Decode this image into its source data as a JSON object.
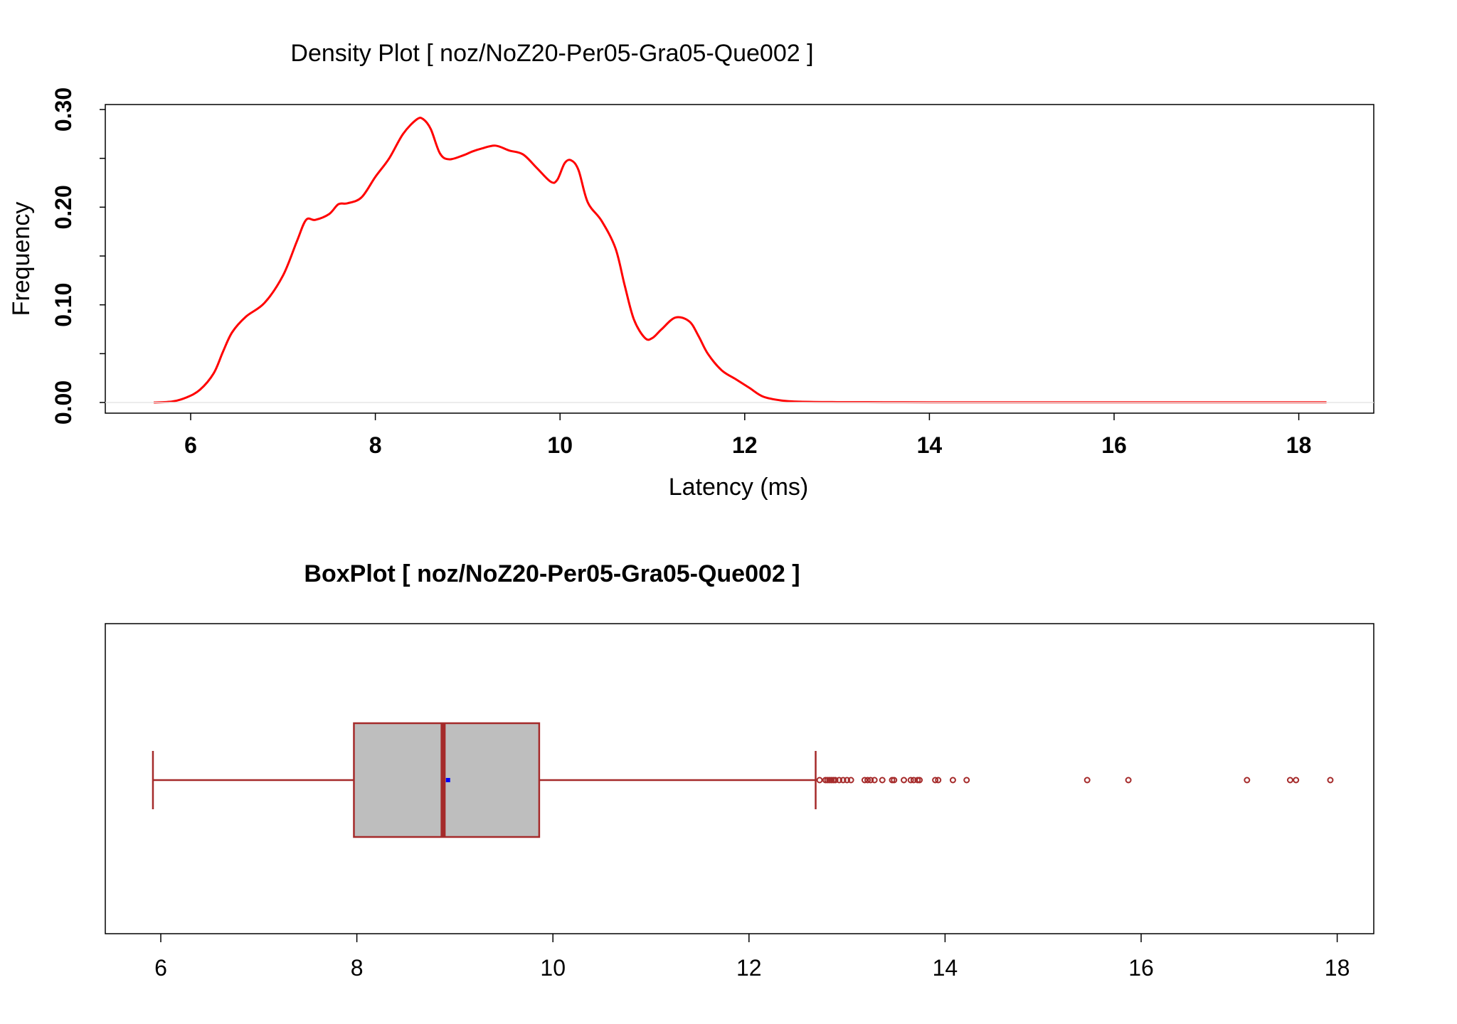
{
  "chart_data": [
    {
      "type": "line",
      "title": "Density Plot [ noz/NoZ20-Per05-Gra05-Que002 ]",
      "xlabel": "Latency (ms)",
      "ylabel": "Frequency",
      "xlim": [
        5.6,
        18.3
      ],
      "ylim": [
        0.0,
        0.3
      ],
      "x_ticks": [
        "6",
        "8",
        "10",
        "12",
        "14",
        "16",
        "18"
      ],
      "y_ticks": [
        "0.00",
        "0.10",
        "0.20",
        "0.30"
      ],
      "line_color": "#ff0000",
      "series": [
        {
          "x": [
            5.6,
            5.8,
            5.95,
            6.1,
            6.25,
            6.35,
            6.45,
            6.6,
            6.8,
            7.0,
            7.15,
            7.25,
            7.35,
            7.5,
            7.6,
            7.7,
            7.85,
            8.0,
            8.15,
            8.3,
            8.45,
            8.52,
            8.6,
            8.7,
            8.8,
            8.95,
            9.05,
            9.15,
            9.3,
            9.45,
            9.6,
            9.75,
            9.9,
            9.97,
            10.05,
            10.12,
            10.2,
            10.3,
            10.45,
            10.6,
            10.7,
            10.8,
            10.92,
            11.0,
            11.1,
            11.25,
            11.4,
            11.5,
            11.6,
            11.75,
            11.9,
            12.05,
            12.2,
            12.4,
            12.6,
            13.0,
            13.5,
            14.0,
            15.0,
            16.0,
            17.0,
            18.3
          ],
          "y": [
            0.0,
            0.001,
            0.005,
            0.013,
            0.03,
            0.052,
            0.072,
            0.088,
            0.102,
            0.13,
            0.165,
            0.187,
            0.187,
            0.193,
            0.203,
            0.204,
            0.21,
            0.231,
            0.25,
            0.275,
            0.29,
            0.29,
            0.28,
            0.255,
            0.249,
            0.253,
            0.257,
            0.26,
            0.263,
            0.258,
            0.254,
            0.24,
            0.226,
            0.228,
            0.245,
            0.248,
            0.238,
            0.205,
            0.186,
            0.158,
            0.12,
            0.085,
            0.066,
            0.066,
            0.075,
            0.087,
            0.083,
            0.068,
            0.05,
            0.033,
            0.024,
            0.015,
            0.006,
            0.002,
            0.0008,
            0.0004,
            0.0003,
            0.0002,
            0.0002,
            0.0002,
            0.0002,
            0.0002
          ]
        }
      ]
    },
    {
      "type": "boxplot",
      "title": "BoxPlot [ noz/NoZ20-Per05-Gra05-Que002 ]",
      "xlim": [
        5.6,
        18.1
      ],
      "x_ticks": [
        "6",
        "8",
        "10",
        "12",
        "14",
        "16",
        "18"
      ],
      "stats": {
        "whisker_low": 5.92,
        "q1": 7.97,
        "median": 8.88,
        "mean": 8.93,
        "q3": 9.86,
        "whisker_high": 12.68
      },
      "outliers": [
        12.72,
        12.78,
        12.8,
        12.82,
        12.84,
        12.86,
        12.88,
        12.92,
        12.96,
        13.0,
        13.04,
        13.18,
        13.21,
        13.24,
        13.28,
        13.36,
        13.46,
        13.48,
        13.58,
        13.65,
        13.68,
        13.72,
        13.74,
        13.9,
        13.93,
        14.08,
        14.22,
        15.45,
        15.87,
        17.08,
        17.52,
        17.58,
        17.93
      ],
      "box_fill": "#bebebe",
      "box_color": "#a52a2a",
      "mean_color": "#0000ff"
    }
  ]
}
